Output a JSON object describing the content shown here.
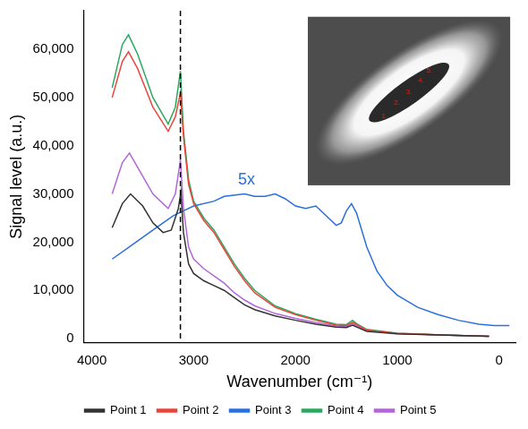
{
  "chart_data": {
    "type": "line",
    "x_label": "Wavenumber (cm⁻¹)",
    "y_label": "Signal level (a.u.)",
    "xlim": [
      4080,
      -160
    ],
    "xticks": [
      4000,
      3000,
      2000,
      1000,
      0
    ],
    "ylim": [
      -800,
      68000
    ],
    "yticks": [
      0,
      {
        "value": 10000,
        "label": "10,000"
      },
      {
        "value": 20000,
        "label": "20,000"
      },
      {
        "value": 30000,
        "label": "30,000"
      },
      {
        "value": 40000,
        "label": "40,000"
      },
      {
        "value": 50000,
        "label": "50,000"
      },
      {
        "value": 60000,
        "label": "60,000"
      }
    ],
    "grid": false,
    "legend": "bottom",
    "vlines": [
      3130
    ],
    "annotations": [
      {
        "text": "5x",
        "x": 2480,
        "y": 31200,
        "color": "#2a6fdb"
      }
    ],
    "inset_labels": [
      "1.",
      "2.",
      "3.",
      "4.",
      "5."
    ],
    "series": [
      {
        "name": "Point 1",
        "color": "#333333",
        "x": [
          3800,
          3700,
          3620,
          3500,
          3400,
          3300,
          3220,
          3150,
          3125,
          3100,
          3050,
          3000,
          2900,
          2800,
          2700,
          2600,
          2500,
          2400,
          2200,
          2000,
          1800,
          1600,
          1500,
          1440,
          1400,
          1300,
          1000,
          500,
          100
        ],
        "values": [
          23000,
          28000,
          30000,
          27500,
          24000,
          22000,
          22500,
          27000,
          30500,
          22000,
          15500,
          13500,
          12000,
          11000,
          10000,
          8500,
          7000,
          6000,
          4700,
          3800,
          3000,
          2400,
          2300,
          2800,
          2400,
          1500,
          1000,
          700,
          500
        ]
      },
      {
        "name": "Point 2",
        "color": "#e8463a",
        "x": [
          3800,
          3700,
          3640,
          3550,
          3400,
          3250,
          3180,
          3130,
          3100,
          3050,
          3000,
          2900,
          2800,
          2700,
          2600,
          2500,
          2400,
          2200,
          2000,
          1800,
          1600,
          1500,
          1440,
          1400,
          1300,
          1000,
          500,
          100
        ],
        "values": [
          50000,
          57500,
          59500,
          56000,
          48000,
          43000,
          46000,
          51000,
          42000,
          32000,
          28000,
          24500,
          22000,
          18500,
          15000,
          12000,
          9500,
          6500,
          5000,
          3800,
          2800,
          2700,
          3400,
          2900,
          1800,
          1100,
          700,
          500
        ]
      },
      {
        "name": "Point 3",
        "color": "#2a6fdb",
        "x": [
          3800,
          3600,
          3400,
          3200,
          3100,
          3000,
          2800,
          2700,
          2500,
          2400,
          2300,
          2200,
          2100,
          2000,
          1900,
          1800,
          1700,
          1600,
          1550,
          1500,
          1450,
          1400,
          1300,
          1200,
          1100,
          1000,
          800,
          600,
          400,
          200,
          50,
          -100
        ],
        "values": [
          16500,
          19500,
          22500,
          25500,
          26500,
          27500,
          28500,
          29500,
          30000,
          29500,
          29500,
          30000,
          29000,
          27500,
          27000,
          27500,
          25500,
          23500,
          24000,
          26500,
          28000,
          26000,
          19000,
          14000,
          11000,
          9000,
          6500,
          5000,
          3800,
          3000,
          2700,
          2700
        ]
      },
      {
        "name": "Point 4",
        "color": "#2aa860",
        "x": [
          3800,
          3700,
          3640,
          3550,
          3400,
          3250,
          3180,
          3130,
          3100,
          3050,
          3000,
          2900,
          2800,
          2700,
          2600,
          2500,
          2400,
          2200,
          2000,
          1800,
          1600,
          1500,
          1440,
          1400,
          1300,
          1000,
          500,
          100
        ],
        "values": [
          52000,
          61000,
          63000,
          59000,
          50000,
          44500,
          48000,
          55500,
          43000,
          33000,
          28500,
          25000,
          22500,
          19000,
          15500,
          12500,
          10000,
          6800,
          5200,
          4000,
          3000,
          2900,
          3800,
          3100,
          1900,
          1150,
          720,
          500
        ]
      },
      {
        "name": "Point 5",
        "color": "#b266d8",
        "x": [
          3800,
          3700,
          3630,
          3550,
          3400,
          3250,
          3180,
          3130,
          3100,
          3050,
          3000,
          2900,
          2800,
          2700,
          2600,
          2500,
          2400,
          2200,
          2000,
          1800,
          1600,
          1500,
          1440,
          1400,
          1300,
          1000,
          500,
          100
        ],
        "values": [
          30000,
          36500,
          38500,
          35500,
          30000,
          27000,
          30000,
          37000,
          27000,
          19000,
          16500,
          14500,
          13000,
          11500,
          9500,
          8000,
          6800,
          5200,
          4200,
          3300,
          2600,
          2500,
          3100,
          2600,
          1700,
          1050,
          700,
          500
        ]
      }
    ]
  }
}
